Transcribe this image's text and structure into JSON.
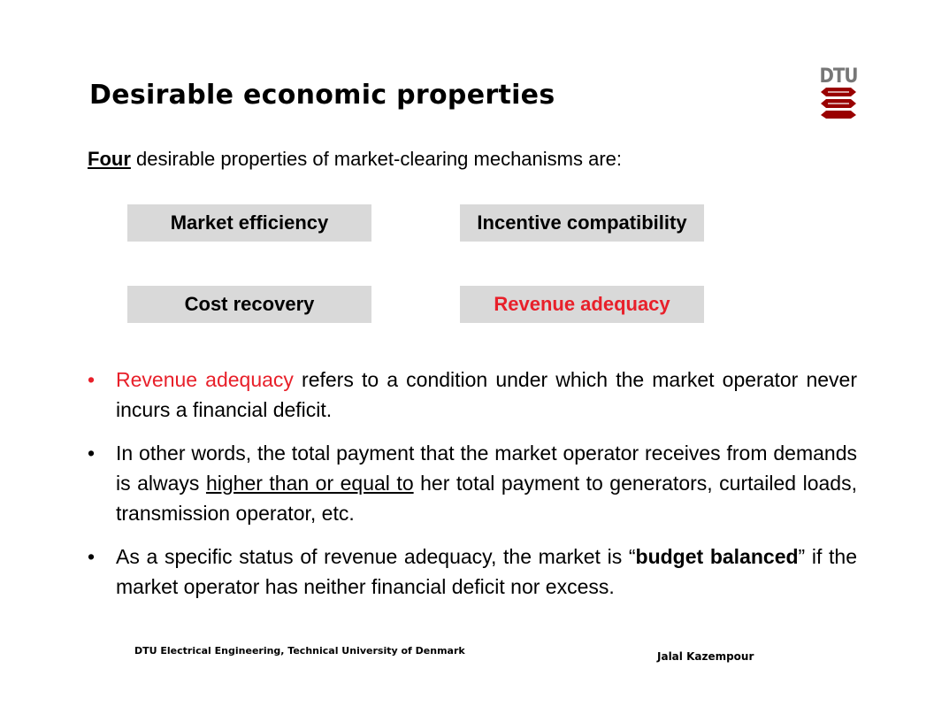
{
  "slide": {
    "title": "Desirable economic properties",
    "logo_text": "DTU",
    "logo_color": "#990000"
  },
  "intro": {
    "emphasis": "Four",
    "rest": " desirable properties of market-clearing mechanisms are:"
  },
  "properties": [
    {
      "label": "Market efficiency",
      "highlighted": false
    },
    {
      "label": "Incentive compatibility",
      "highlighted": false
    },
    {
      "label": "Cost recovery",
      "highlighted": false
    },
    {
      "label": "Revenue adequacy",
      "highlighted": true
    }
  ],
  "bullets": {
    "b1": {
      "highlight": "Revenue adequacy",
      "text": " refers to a condition under which the market operator never incurs a financial deficit."
    },
    "b2": {
      "pre": "In other words, the total payment that the market operator receives from demands is always ",
      "underline": "higher than or equal to",
      "post": " her total payment to generators, curtailed loads, transmission operator, etc."
    },
    "b3": {
      "pre": "As a specific status of revenue adequacy, the market is “",
      "bold": "budget balanced",
      "post": "” if the market operator has neither financial deficit nor excess."
    }
  },
  "footer": {
    "left": "DTU Electrical Engineering, Technical University of Denmark",
    "right": "Jalal Kazempour"
  },
  "colors": {
    "highlight": "#e8202a",
    "box_fill": "#d9d9d9"
  }
}
